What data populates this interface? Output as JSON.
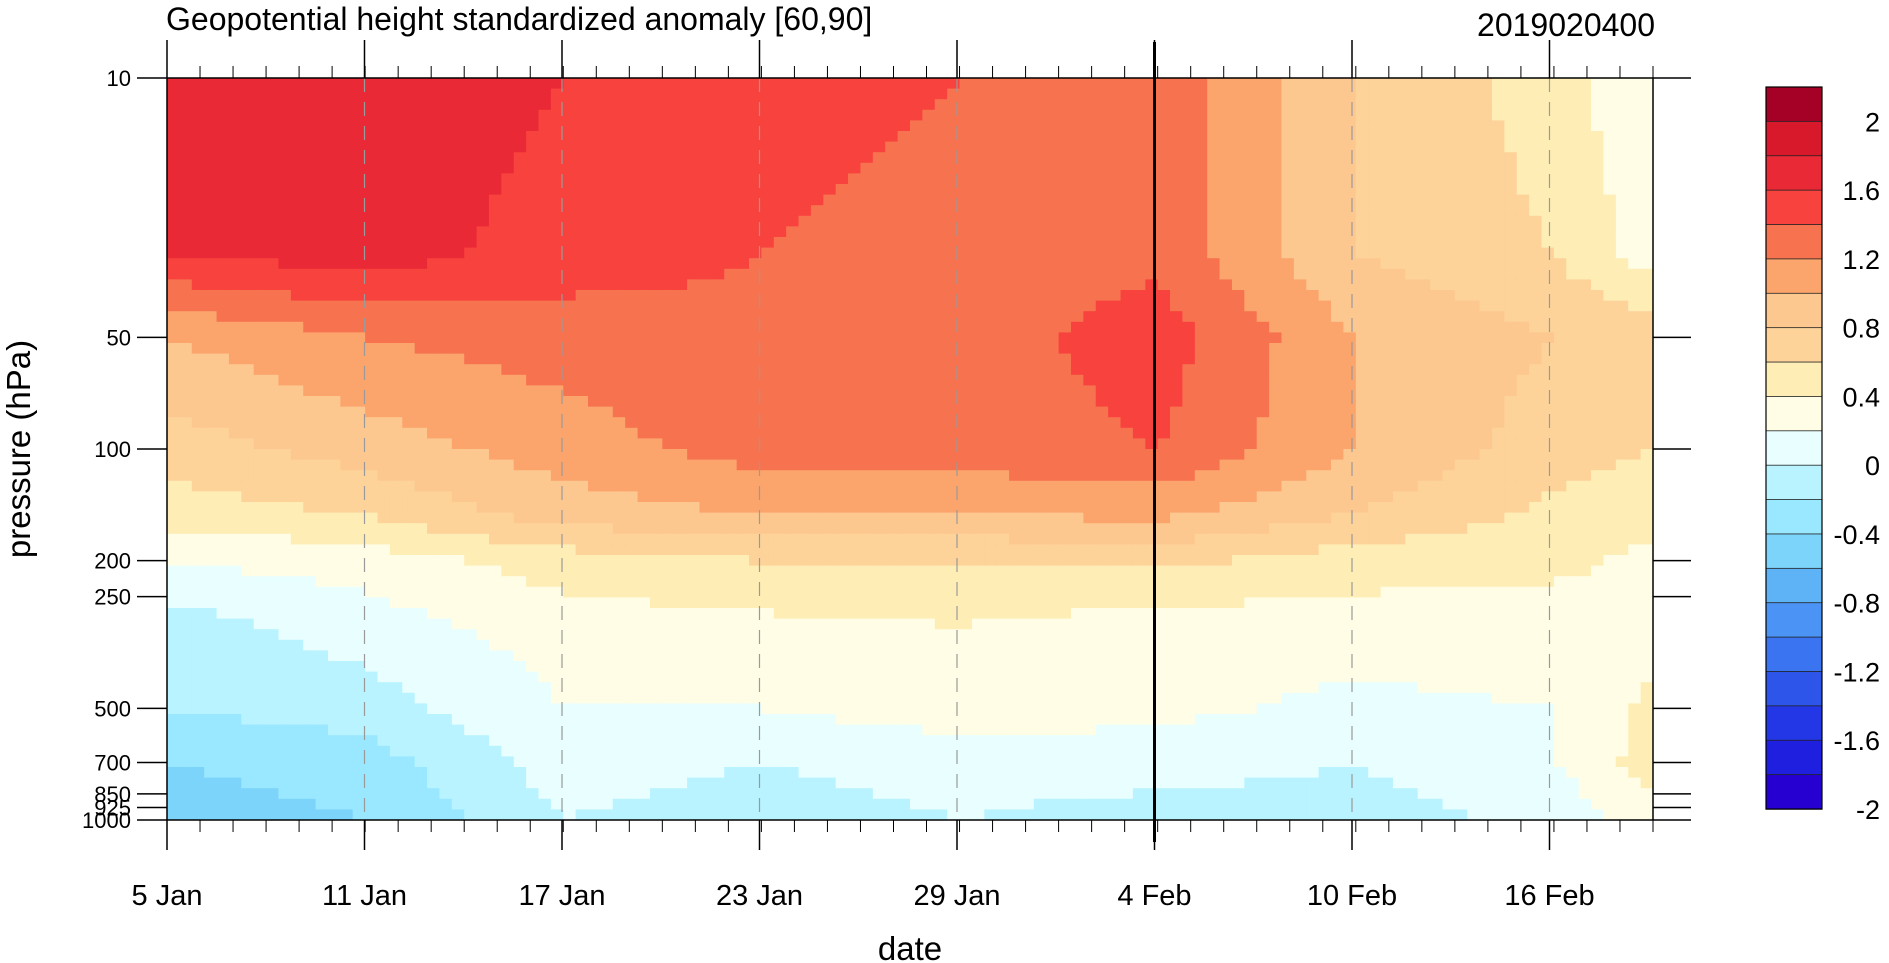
{
  "chart_data": {
    "type": "heatmap",
    "title": "Geopotential height standardized anomaly [60,90]",
    "date_stamp": "2019020400",
    "xlabel": "date",
    "ylabel": "pressure (hPa)",
    "x_start": "5 Jan 2019",
    "x_end": "19 Feb 2019",
    "x_ticks": [
      "5 Jan",
      "11 Jan",
      "17 Jan",
      "23 Jan",
      "29 Jan",
      "4 Feb",
      "10 Feb",
      "16 Feb"
    ],
    "y_scale": "log",
    "y_reversed": true,
    "y_ticks": [
      "10",
      "50",
      "100",
      "200",
      "250",
      "500",
      "700",
      "850",
      "925",
      "1000"
    ],
    "ylim": [
      1000,
      10
    ],
    "current_date_marker": "4 Feb",
    "colorbar": {
      "labels": [
        "2",
        "1.6",
        "1.2",
        "0.8",
        "0.4",
        "0",
        "-0.4",
        "-0.8",
        "-1.2",
        "-1.6",
        "-2"
      ],
      "levels": [
        2.2,
        2.0,
        1.8,
        1.6,
        1.4,
        1.2,
        1.0,
        0.8,
        0.6,
        0.4,
        0.2,
        0.0,
        -0.2,
        -0.4,
        -0.6,
        -0.8,
        -1.0,
        -1.2,
        -1.4,
        -1.6,
        -1.8,
        -2.0,
        -2.2
      ],
      "colors": [
        "#a50026",
        "#d7192b",
        "#ea2936",
        "#f8423d",
        "#f77350",
        "#fba56d",
        "#fdc88f",
        "#fdd39a",
        "#feeeb6",
        "#fffde6",
        "#e8feff",
        "#b8f3ff",
        "#9ae8ff",
        "#7dd4fa",
        "#5eb3f6",
        "#4b94f5",
        "#3a74f0",
        "#2d55ea",
        "#2437e6",
        "#1f1fe0",
        "#2600d0"
      ]
    },
    "grid": {
      "days": [
        0,
        6,
        12,
        18,
        24,
        30,
        36,
        42,
        45
      ],
      "levels_hPa": [
        10,
        30,
        50,
        100,
        150,
        200,
        300,
        500,
        700,
        1000
      ],
      "values": [
        [
          1.8,
          1.6,
          1.0,
          0.7,
          0.5,
          0.2,
          -0.1,
          -0.2,
          -0.4,
          -0.5
        ],
        [
          1.8,
          1.7,
          1.2,
          0.9,
          0.6,
          0.3,
          0.1,
          -0.1,
          -0.3,
          -0.4
        ],
        [
          1.6,
          1.5,
          1.3,
          1.1,
          0.9,
          0.5,
          0.3,
          0.2,
          0.1,
          0.0
        ],
        [
          1.5,
          1.4,
          1.35,
          1.3,
          1.0,
          0.6,
          0.35,
          0.2,
          0.0,
          -0.1
        ],
        [
          1.4,
          1.3,
          1.3,
          1.3,
          1.0,
          0.6,
          0.4,
          0.3,
          0.1,
          0.0
        ],
        [
          1.35,
          1.35,
          1.5,
          1.4,
          1.05,
          0.65,
          0.3,
          0.25,
          0.1,
          -0.1
        ],
        [
          0.8,
          0.8,
          1.0,
          1.0,
          0.8,
          0.5,
          0.3,
          0.15,
          0.0,
          -0.1
        ],
        [
          0.5,
          0.6,
          0.8,
          0.7,
          0.55,
          0.45,
          0.3,
          0.2,
          0.2,
          0.05
        ],
        [
          0.2,
          0.3,
          0.7,
          0.6,
          0.45,
          0.35,
          0.3,
          0.45,
          0.5,
          0.3
        ]
      ]
    }
  }
}
